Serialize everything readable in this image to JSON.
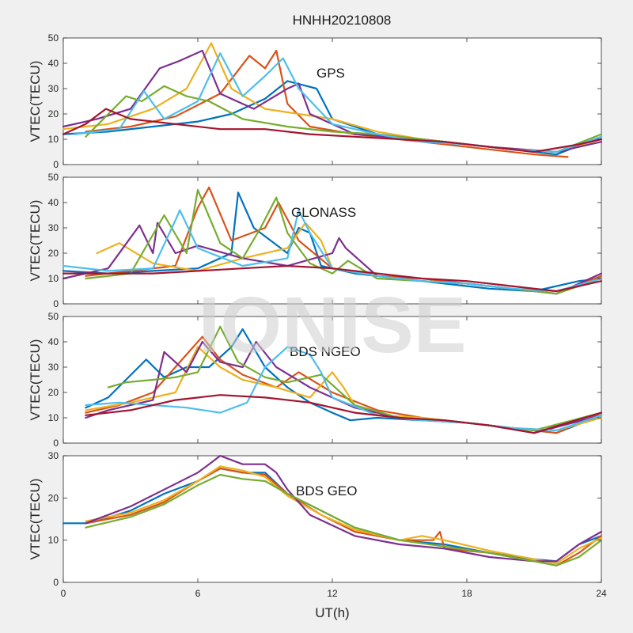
{
  "title": "HNHH20210808",
  "watermark": "IONISE",
  "xlabel": "UT(h)",
  "colors": [
    "#0072BD",
    "#D95319",
    "#EDB120",
    "#7E2F8E",
    "#77AC30",
    "#4DBEEE",
    "#A2142F"
  ],
  "chart_data": [
    {
      "type": "line",
      "label": "GPS",
      "ylabel": "VTEC(TECU)",
      "xlim": [
        0,
        24
      ],
      "ylim": [
        0,
        50
      ],
      "xticks": [
        0,
        6,
        12,
        18,
        24
      ],
      "yticks": [
        0,
        10,
        20,
        30,
        40,
        50
      ],
      "series": [
        {
          "x": [
            0,
            2,
            4,
            6,
            7.5,
            9,
            10,
            11.3,
            12,
            14,
            16,
            18,
            20,
            22,
            24
          ],
          "values": [
            12,
            13,
            15,
            17,
            20,
            26,
            33,
            30,
            18,
            12,
            10,
            8,
            6,
            4,
            11
          ]
        },
        {
          "x": [
            1,
            3,
            5,
            7,
            8.3,
            9,
            9.5,
            10,
            11,
            13,
            15,
            17,
            19,
            21,
            22.5
          ],
          "values": [
            13,
            15,
            19,
            28,
            43,
            38,
            45,
            24,
            15,
            12,
            10,
            8,
            6,
            4,
            3
          ]
        },
        {
          "x": [
            0,
            2,
            4,
            5.5,
            6.6,
            7.5,
            9,
            10.5,
            12,
            14,
            16,
            18,
            20,
            22,
            24
          ],
          "values": [
            14,
            16,
            22,
            30,
            48,
            30,
            22,
            20,
            18,
            13,
            10,
            8,
            6,
            5,
            10
          ]
        },
        {
          "x": [
            0,
            1.5,
            3,
            4.3,
            5.2,
            6.2,
            7,
            8.5,
            10,
            10.5,
            11,
            13,
            16,
            19,
            22,
            24
          ],
          "values": [
            15,
            18,
            22,
            38,
            41,
            45,
            28,
            22,
            30,
            32,
            20,
            12,
            10,
            7,
            5,
            9
          ]
        },
        {
          "x": [
            1,
            2.8,
            3.5,
            4.5,
            5.5,
            6.5,
            8,
            10,
            12,
            14,
            16,
            18,
            20,
            22,
            24
          ],
          "values": [
            11,
            27,
            25,
            31,
            27,
            25,
            18,
            15,
            13,
            12,
            10,
            8,
            6,
            5,
            12
          ]
        },
        {
          "x": [
            0.5,
            2.5,
            3.6,
            4.5,
            6,
            7,
            8,
            9,
            9.8,
            10.5,
            12,
            14,
            16,
            18,
            20,
            22,
            24
          ],
          "values": [
            12,
            14,
            29,
            18,
            25,
            44,
            27,
            35,
            42,
            30,
            16,
            12,
            9,
            8,
            6,
            5,
            11
          ]
        },
        {
          "x": [
            0,
            1,
            1.9,
            3,
            5,
            7,
            9,
            11,
            13,
            15,
            17,
            19,
            21,
            23,
            24
          ],
          "values": [
            12,
            16,
            22,
            18,
            16,
            14,
            14,
            12,
            11,
            10,
            9,
            7,
            5,
            8,
            10
          ]
        }
      ]
    },
    {
      "type": "line",
      "label": "GLONASS",
      "ylabel": "VTEC(TECU)",
      "xlim": [
        0,
        24
      ],
      "ylim": [
        0,
        50
      ],
      "xticks": [
        0,
        6,
        12,
        18,
        24
      ],
      "yticks": [
        0,
        10,
        20,
        30,
        40,
        50
      ],
      "series": [
        {
          "x": [
            0,
            2,
            4,
            6,
            7.5,
            7.8,
            8.5,
            10,
            10.5,
            11,
            11.5,
            13,
            15,
            17,
            19,
            21,
            23,
            24
          ],
          "values": [
            13,
            12,
            13,
            14,
            20,
            44,
            30,
            20,
            30,
            28,
            15,
            12,
            10,
            8,
            6,
            5,
            9,
            10
          ]
        },
        {
          "x": [
            1,
            3,
            5,
            6,
            6.5,
            7.5,
            9,
            9.6,
            10.5,
            12,
            14,
            16,
            18,
            20,
            22,
            24
          ],
          "values": [
            11,
            13,
            15,
            38,
            46,
            25,
            30,
            40,
            25,
            14,
            11,
            10,
            8,
            6,
            4,
            11
          ]
        },
        {
          "x": [
            1.5,
            2.5,
            4,
            6,
            8,
            10,
            10.8,
            11.5,
            12,
            14,
            16,
            18,
            20,
            22,
            24
          ],
          "values": [
            20,
            24,
            16,
            13,
            18,
            22,
            32,
            25,
            14,
            11,
            9,
            8,
            6,
            5,
            10
          ]
        },
        {
          "x": [
            0,
            2,
            3.4,
            4,
            4.2,
            5,
            6,
            8,
            10,
            12,
            12.3,
            12.6,
            14,
            16,
            18,
            20,
            22,
            24
          ],
          "values": [
            10,
            14,
            31,
            20,
            32,
            20,
            23,
            18,
            15,
            20,
            26,
            22,
            11,
            9,
            8,
            6,
            4,
            12
          ]
        },
        {
          "x": [
            1,
            3,
            4.5,
            5.5,
            6,
            7,
            8,
            8.8,
            9.5,
            10,
            11,
            12,
            12.7,
            14,
            16,
            18,
            20,
            22,
            24
          ],
          "values": [
            10,
            12,
            35,
            20,
            45,
            24,
            18,
            30,
            42,
            28,
            16,
            12,
            17,
            10,
            9,
            8,
            6,
            4,
            10
          ]
        },
        {
          "x": [
            0,
            2,
            4,
            5,
            5.2,
            6,
            8,
            10,
            10.5,
            11,
            12,
            14,
            16,
            18,
            20,
            22,
            24
          ],
          "values": [
            15,
            13,
            14,
            33,
            37,
            22,
            15,
            18,
            37,
            28,
            14,
            11,
            9,
            8,
            6,
            5,
            10
          ]
        },
        {
          "x": [
            0,
            2,
            4,
            6,
            8,
            10,
            12,
            14,
            16,
            18,
            20,
            22,
            24
          ],
          "values": [
            12,
            12,
            12,
            13,
            14,
            15,
            14,
            12,
            10,
            9,
            7,
            5,
            9
          ]
        }
      ]
    },
    {
      "type": "line",
      "label": "BDS NGEO",
      "ylabel": "VTEC(TECU)",
      "xlim": [
        0,
        24
      ],
      "ylim": [
        0,
        50
      ],
      "xticks": [
        0,
        6,
        12,
        18,
        24
      ],
      "yticks": [
        0,
        10,
        20,
        30,
        40,
        50
      ],
      "series": [
        {
          "x": [
            1,
            2,
            3.7,
            4.5,
            5.5,
            6.5,
            7.5,
            8,
            9,
            10,
            11,
            12,
            12.8,
            14,
            16,
            18,
            20,
            22,
            24
          ],
          "values": [
            14,
            18,
            33,
            26,
            30,
            30,
            38,
            45,
            30,
            22,
            16,
            12,
            9,
            10,
            9,
            8,
            6,
            4,
            11
          ]
        },
        {
          "x": [
            1,
            2.5,
            4,
            5.5,
            6.2,
            7,
            8,
            9.5,
            10.5,
            12,
            14,
            16,
            18,
            20,
            22,
            24
          ],
          "values": [
            12,
            15,
            20,
            35,
            42,
            33,
            27,
            22,
            28,
            20,
            13,
            10,
            8,
            6,
            4,
            12
          ]
        },
        {
          "x": [
            1,
            3,
            5,
            6,
            7,
            8,
            9.5,
            11,
            12,
            12.5,
            13,
            14,
            16,
            18,
            20,
            22,
            24
          ],
          "values": [
            13,
            16,
            20,
            38,
            30,
            25,
            22,
            18,
            28,
            22,
            15,
            11,
            10,
            8,
            6,
            5,
            10
          ]
        },
        {
          "x": [
            1,
            2,
            4,
            4.5,
            5.5,
            6.2,
            7,
            8,
            8.6,
            9.5,
            11,
            13,
            15,
            17,
            19,
            21,
            24
          ],
          "values": [
            10,
            13,
            17,
            36,
            28,
            40,
            32,
            30,
            40,
            30,
            22,
            14,
            10,
            9,
            7,
            4,
            11
          ]
        },
        {
          "x": [
            2,
            2.8,
            4,
            5,
            6,
            7,
            7.8,
            9,
            10,
            11.5,
            13,
            15,
            17,
            19,
            21,
            24
          ],
          "values": [
            22,
            24,
            25,
            26,
            28,
            46,
            32,
            26,
            24,
            27,
            15,
            10,
            9,
            7,
            5,
            12
          ]
        },
        {
          "x": [
            1,
            2.5,
            4,
            5.5,
            7,
            8.2,
            9,
            10,
            11,
            11.5,
            12,
            14,
            16,
            18,
            20,
            22,
            24
          ],
          "values": [
            15,
            16,
            15,
            14,
            12,
            16,
            30,
            38,
            35,
            28,
            18,
            11,
            9,
            8,
            6,
            5,
            11
          ]
        },
        {
          "x": [
            1,
            3,
            5,
            7,
            9,
            11,
            13,
            15,
            17,
            19,
            21,
            24
          ],
          "values": [
            11,
            13,
            17,
            19,
            18,
            16,
            12,
            10,
            9,
            7,
            4,
            12
          ]
        }
      ]
    },
    {
      "type": "line",
      "label": "BDS GEO",
      "ylabel": "VTEC(TECU)",
      "xlim": [
        0,
        24
      ],
      "ylim": [
        0,
        30
      ],
      "xticks": [
        0,
        6,
        12,
        18,
        24
      ],
      "yticks": [
        0,
        10,
        20,
        30
      ],
      "series": [
        {
          "x": [
            0,
            0.5,
            1,
            1.5,
            3,
            4.5,
            6,
            7,
            8,
            9,
            10,
            11.5,
            13,
            15,
            17,
            19,
            21,
            22,
            23,
            24
          ],
          "values": [
            14,
            14,
            14,
            14.5,
            17,
            21,
            24,
            27,
            26,
            26,
            21,
            17,
            13,
            10,
            9,
            7,
            5.5,
            5,
            9,
            11
          ]
        },
        {
          "x": [
            1,
            3,
            4.5,
            6,
            7,
            8,
            9,
            10,
            11.5,
            13,
            15,
            16.5,
            16.8,
            17,
            19,
            21,
            22,
            23,
            24
          ],
          "values": [
            14,
            16,
            19,
            24,
            27,
            26,
            25.5,
            21,
            16,
            12,
            10,
            10,
            12,
            8,
            7,
            5,
            4,
            7,
            11
          ]
        },
        {
          "x": [
            1,
            3,
            4.5,
            6,
            7,
            8,
            9,
            10,
            11.5,
            13,
            15,
            16,
            17,
            19,
            21,
            22,
            23,
            24
          ],
          "values": [
            14.5,
            16.5,
            19.5,
            24,
            27.5,
            26.5,
            25,
            20.5,
            16,
            12.5,
            10,
            11,
            10,
            7.5,
            5.5,
            4.5,
            8,
            10.5
          ]
        },
        {
          "x": [
            1,
            3,
            4.5,
            6,
            6.5,
            7,
            8,
            9,
            9.5,
            10,
            11,
            13,
            15,
            17,
            19,
            21,
            22,
            23,
            24
          ],
          "values": [
            14,
            18,
            22,
            26,
            28,
            30,
            28,
            28,
            26,
            22,
            16,
            11,
            9,
            8,
            6,
            5,
            5,
            9,
            12
          ]
        },
        {
          "x": [
            1,
            3,
            4.5,
            6,
            7,
            8,
            9,
            10,
            11.5,
            13,
            15,
            17,
            19,
            21,
            22,
            23,
            24
          ],
          "values": [
            13,
            15.5,
            18.5,
            23,
            25.5,
            24.5,
            24,
            21,
            17,
            13,
            10,
            8.5,
            7,
            5,
            4,
            6,
            10
          ]
        }
      ]
    }
  ]
}
